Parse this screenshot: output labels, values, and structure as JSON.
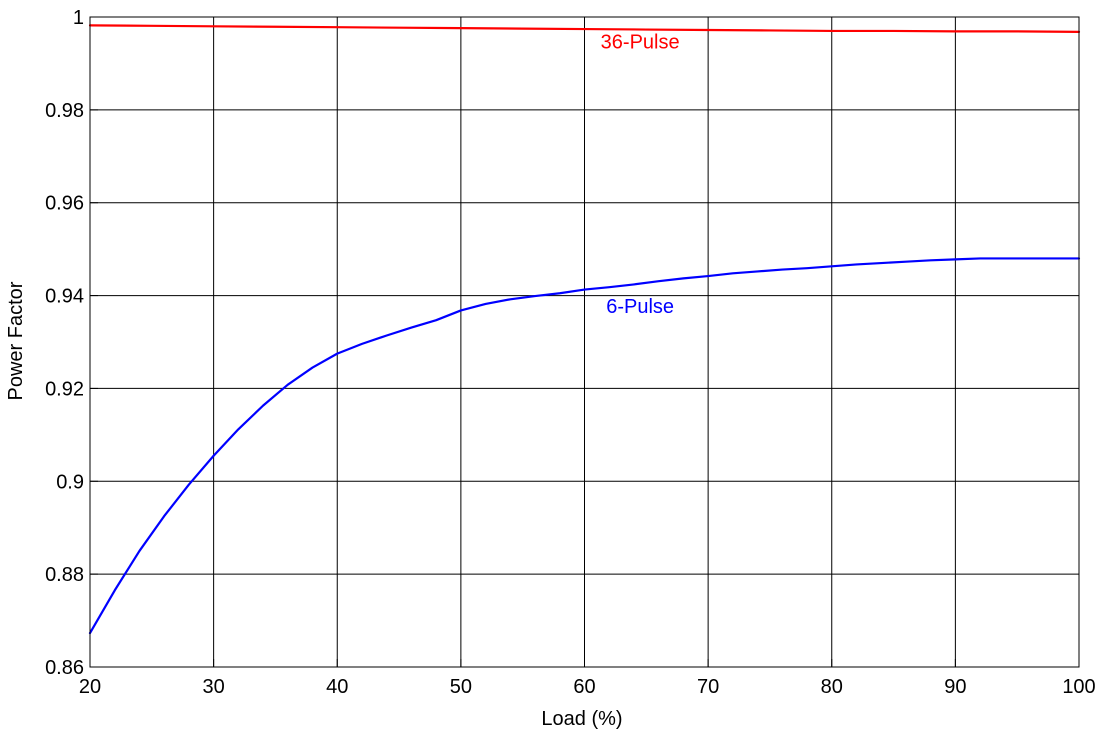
{
  "chart_data": {
    "type": "line",
    "title": "",
    "xlabel": "Load (%)",
    "ylabel": "Power Factor",
    "xlim": [
      20,
      100
    ],
    "ylim": [
      0.86,
      1.0
    ],
    "xticks": [
      20,
      30,
      40,
      50,
      60,
      70,
      80,
      90,
      100
    ],
    "yticks": [
      0.86,
      0.88,
      0.9,
      0.92,
      0.94,
      0.96,
      0.98,
      1.0
    ],
    "xtick_labels": [
      "20",
      "30",
      "40",
      "50",
      "60",
      "70",
      "80",
      "90",
      "100"
    ],
    "ytick_labels": [
      "0.86",
      "0.88",
      "0.9",
      "0.92",
      "0.94",
      "0.96",
      "0.98",
      "1"
    ],
    "grid": true,
    "series": [
      {
        "name": "36-Pulse",
        "color": "#ff0000",
        "x": [
          20,
          25,
          30,
          35,
          40,
          45,
          50,
          55,
          60,
          65,
          70,
          75,
          80,
          85,
          90,
          95,
          100
        ],
        "y": [
          0.9982,
          0.9981,
          0.998,
          0.9979,
          0.9978,
          0.9977,
          0.9976,
          0.9975,
          0.9974,
          0.9973,
          0.9972,
          0.9971,
          0.997,
          0.997,
          0.9969,
          0.9969,
          0.9968
        ]
      },
      {
        "name": "6-Pulse",
        "color": "#0000ff",
        "x": [
          20,
          22,
          24,
          26,
          28,
          30,
          32,
          34,
          36,
          38,
          40,
          42,
          44,
          46,
          48,
          50,
          52,
          54,
          56,
          58,
          60,
          62,
          64,
          66,
          68,
          70,
          72,
          74,
          76,
          78,
          80,
          82,
          84,
          86,
          88,
          90,
          92,
          94,
          96,
          98,
          100
        ],
        "y": [
          0.8673,
          0.8765,
          0.885,
          0.8925,
          0.8993,
          0.9055,
          0.9112,
          0.9163,
          0.9208,
          0.9245,
          0.9275,
          0.9296,
          0.9314,
          0.9331,
          0.9347,
          0.9368,
          0.9382,
          0.9392,
          0.9399,
          0.9405,
          0.9413,
          0.9418,
          0.9424,
          0.9431,
          0.9437,
          0.9442,
          0.9448,
          0.9452,
          0.9456,
          0.9459,
          0.9463,
          0.9467,
          0.947,
          0.9473,
          0.9476,
          0.9478,
          0.948,
          0.948,
          0.948,
          0.948,
          0.948
        ]
      }
    ]
  }
}
